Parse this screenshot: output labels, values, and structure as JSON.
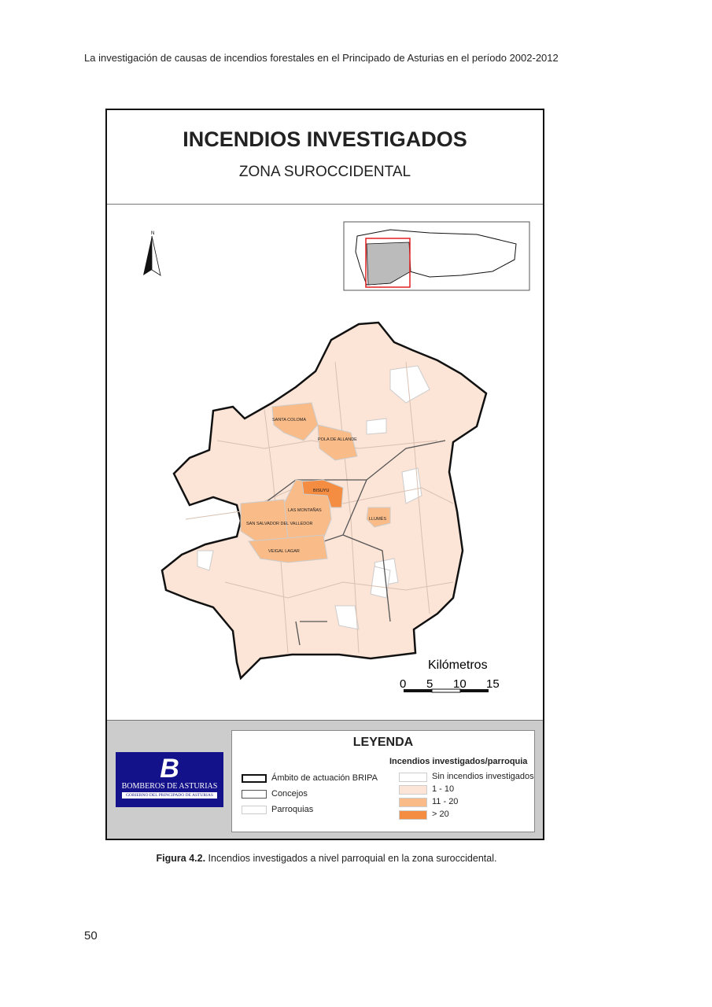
{
  "header": "La investigación de causas de incendios forestales en el Principado de Asturias en el período 2002-2012",
  "map": {
    "title": "INCENDIOS INVESTIGADOS",
    "subtitle": "ZONA SUROCCIDENTAL",
    "north_label": "N",
    "scale": {
      "title": "Kilómetros",
      "ticks": [
        "0",
        "5",
        "10",
        "15"
      ]
    },
    "places": [
      {
        "name": "SANTA COLOMA",
        "class": "11 - 20"
      },
      {
        "name": "POLA DE ALLANDE",
        "class": "11 - 20"
      },
      {
        "name": "BISUYU",
        "class": "> 20"
      },
      {
        "name": "LAS MONTAÑAS",
        "class": "11 - 20"
      },
      {
        "name": "SAN SALVADOR DEL VALLEDOR",
        "class": "11 - 20"
      },
      {
        "name": "LLUMÉS",
        "class": "11 - 20"
      },
      {
        "name": "VEIGAL LAGAR",
        "class": "11 - 20"
      }
    ],
    "colors": {
      "none": "#ffffff",
      "c1_10": "#fce4d6",
      "c11_20": "#f9bb88",
      "c20": "#f48c42",
      "boundary": "#222222",
      "parish": "#cccccc"
    }
  },
  "logo": {
    "name": "BOMBEROS DE ASTURIAS",
    "sub": "GOBIERNO DEL PRINCIPADO DE ASTURIAS"
  },
  "legend": {
    "title": "LEYENDA",
    "lines": [
      "Ámbito de actuación BRIPA",
      "Concejos",
      "Parroquias"
    ],
    "heading": "Incendios investigados/parroquia",
    "classes": [
      "Sin incendios investigados",
      "1 - 10",
      "11 - 20",
      "> 20"
    ]
  },
  "caption": {
    "bold": "Figura 4.2.",
    "text": " Incendios investigados a nivel parroquial en la zona suroccidental."
  },
  "page_number": "50"
}
